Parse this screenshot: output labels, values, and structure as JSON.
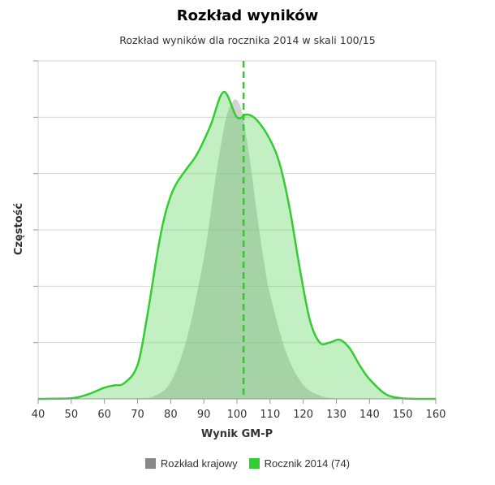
{
  "chart_data": {
    "type": "area",
    "title": "Rozkład wyników",
    "subtitle": "Rozkład wyników dla rocznika 2014 w skali 100/15",
    "xlabel": "Wynik GM-P",
    "ylabel": "Częstość",
    "xlim": [
      40,
      160
    ],
    "xticks": [
      40,
      50,
      60,
      70,
      80,
      90,
      100,
      110,
      120,
      130,
      140,
      150,
      160
    ],
    "ylim": [
      0,
      6
    ],
    "grid": true,
    "legend_position": "bottom",
    "marker_line": {
      "x": 102,
      "color": "#2ecc2e",
      "style": "dashed"
    },
    "series": [
      {
        "name": "Rozkład krajowy",
        "color": "#888888",
        "x": [
          40,
          60,
          70,
          75,
          80,
          85,
          90,
          93,
          95,
          97,
          99,
          100,
          101,
          102,
          104,
          106,
          108,
          110,
          115,
          120,
          125,
          130,
          140,
          160
        ],
        "y": [
          0,
          0,
          0.01,
          0.05,
          0.3,
          1.1,
          2.5,
          3.7,
          4.45,
          5.05,
          5.3,
          5.3,
          5.2,
          4.95,
          4.2,
          3.3,
          2.5,
          1.85,
          0.8,
          0.25,
          0.06,
          0.01,
          0,
          0
        ]
      },
      {
        "name": "Rocznik 2014 (74)",
        "color": "#33cc33",
        "x": [
          40,
          50,
          55,
          60,
          63,
          66,
          70,
          73,
          76,
          78,
          80,
          82,
          85,
          88,
          92,
          96,
          100,
          103,
          106,
          110,
          113,
          116,
          119,
          122,
          125,
          128,
          131,
          134,
          137,
          140,
          145,
          150,
          155,
          160
        ],
        "y": [
          0,
          0.01,
          0.08,
          0.2,
          0.24,
          0.28,
          0.6,
          1.5,
          2.6,
          3.2,
          3.6,
          3.85,
          4.1,
          4.35,
          4.85,
          5.45,
          5.0,
          5.05,
          4.95,
          4.6,
          4.15,
          3.35,
          2.3,
          1.4,
          1.0,
          1.0,
          1.05,
          0.9,
          0.6,
          0.35,
          0.08,
          0.01,
          0,
          0
        ]
      }
    ]
  },
  "legend": {
    "items": [
      {
        "label": "Rozkład krajowy",
        "color": "#888888"
      },
      {
        "label": "Rocznik 2014 (74)",
        "color": "#33cc33"
      }
    ]
  }
}
